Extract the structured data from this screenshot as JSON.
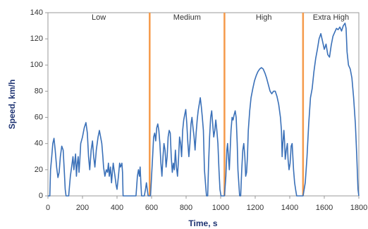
{
  "chart_data": {
    "type": "line",
    "y_label": "Speed, km/h",
    "x_label": "Time, s",
    "phase_labels": [
      "Low",
      "Medium",
      "High",
      "Extra High"
    ],
    "phase_boundaries": [
      589,
      1022,
      1477
    ],
    "phase_color": "#f59a4a",
    "xlim": [
      0,
      1800
    ],
    "xticks": [
      0,
      200,
      400,
      600,
      800,
      1000,
      1200,
      1400,
      1600,
      1800
    ],
    "ylim": [
      0,
      140
    ],
    "yticks": [
      0,
      20,
      40,
      60,
      80,
      100,
      120,
      140
    ],
    "grid": false,
    "series": [
      {
        "color": "#3a70b8",
        "x": [
          0,
          11,
          15,
          22,
          28,
          35,
          42,
          50,
          58,
          65,
          72,
          80,
          88,
          95,
          100,
          105,
          120,
          130,
          140,
          145,
          150,
          155,
          160,
          165,
          170,
          175,
          180,
          185,
          190,
          200,
          210,
          220,
          228,
          235,
          242,
          250,
          258,
          265,
          272,
          280,
          290,
          298,
          305,
          312,
          318,
          322,
          330,
          338,
          345,
          350,
          355,
          362,
          368,
          373,
          378,
          383,
          388,
          395,
          400,
          408,
          415,
          420,
          428,
          432,
          435,
          510,
          518,
          524,
          530,
          534,
          538,
          542,
          558,
          565,
          570,
          575,
          580,
          594,
          600,
          606,
          612,
          618,
          624,
          630,
          636,
          642,
          648,
          654,
          660,
          666,
          672,
          678,
          684,
          690,
          696,
          702,
          708,
          714,
          720,
          726,
          732,
          738,
          744,
          750,
          756,
          762,
          768,
          774,
          780,
          786,
          792,
          798,
          804,
          810,
          816,
          822,
          828,
          834,
          840,
          846,
          852,
          858,
          864,
          870,
          876,
          882,
          888,
          894,
          900,
          906,
          912,
          918,
          925,
          930,
          936,
          942,
          948,
          954,
          960,
          966,
          972,
          978,
          984,
          990,
          996,
          1002,
          1022,
          1030,
          1036,
          1040,
          1045,
          1050,
          1055,
          1060,
          1066,
          1072,
          1078,
          1084,
          1090,
          1096,
          1100,
          1105,
          1110,
          1116,
          1122,
          1128,
          1134,
          1140,
          1145,
          1150,
          1155,
          1160,
          1168,
          1176,
          1186,
          1196,
          1206,
          1216,
          1226,
          1236,
          1246,
          1256,
          1266,
          1276,
          1286,
          1296,
          1306,
          1316,
          1326,
          1336,
          1346,
          1352,
          1356,
          1360,
          1366,
          1370,
          1374,
          1380,
          1386,
          1390,
          1396,
          1402,
          1408,
          1414,
          1418,
          1422,
          1428,
          1434,
          1440,
          1477,
          1490,
          1500,
          1510,
          1520,
          1530,
          1540,
          1550,
          1560,
          1570,
          1580,
          1590,
          1600,
          1610,
          1620,
          1630,
          1640,
          1650,
          1660,
          1670,
          1680,
          1690,
          1700,
          1710,
          1720,
          1726,
          1732,
          1740,
          1750,
          1760,
          1770,
          1780,
          1788,
          1795,
          1800
        ],
        "values": [
          0,
          0,
          20,
          30,
          40,
          44,
          35,
          22,
          14,
          18,
          30,
          38,
          35,
          18,
          5,
          0,
          0,
          15,
          25,
          30,
          20,
          26,
          32,
          15,
          25,
          30,
          18,
          28,
          40,
          45,
          52,
          56,
          48,
          30,
          20,
          35,
          42,
          30,
          22,
          35,
          45,
          50,
          45,
          40,
          30,
          22,
          15,
          20,
          18,
          25,
          15,
          22,
          10,
          18,
          25,
          20,
          15,
          8,
          5,
          15,
          25,
          22,
          25,
          18,
          0,
          0,
          15,
          20,
          15,
          22,
          10,
          0,
          0,
          5,
          10,
          5,
          0,
          0,
          15,
          30,
          45,
          48,
          42,
          52,
          55,
          50,
          40,
          25,
          15,
          30,
          40,
          35,
          22,
          30,
          45,
          50,
          48,
          30,
          18,
          25,
          20,
          35,
          22,
          15,
          28,
          45,
          40,
          30,
          50,
          58,
          62,
          66,
          55,
          40,
          30,
          40,
          55,
          60,
          52,
          45,
          35,
          48,
          58,
          65,
          70,
          75,
          68,
          60,
          50,
          20,
          10,
          0,
          0,
          25,
          45,
          60,
          65,
          55,
          45,
          50,
          58,
          50,
          40,
          20,
          5,
          0,
          0,
          15,
          35,
          40,
          30,
          20,
          35,
          50,
          60,
          58,
          62,
          65,
          60,
          40,
          20,
          10,
          0,
          0,
          20,
          35,
          40,
          30,
          15,
          18,
          30,
          50,
          65,
          75,
          82,
          88,
          92,
          95,
          97,
          98,
          97,
          94,
          90,
          85,
          80,
          78,
          80,
          80,
          76,
          70,
          60,
          50,
          30,
          40,
          50,
          42,
          28,
          35,
          40,
          28,
          20,
          25,
          38,
          40,
          30,
          20,
          10,
          5,
          0,
          0,
          10,
          30,
          55,
          75,
          82,
          95,
          105,
          112,
          120,
          124,
          118,
          112,
          116,
          108,
          106,
          115,
          122,
          125,
          128,
          127,
          129,
          126,
          130,
          132,
          128,
          110,
          100,
          97,
          90,
          75,
          55,
          30,
          5,
          0
        ]
      }
    ]
  }
}
